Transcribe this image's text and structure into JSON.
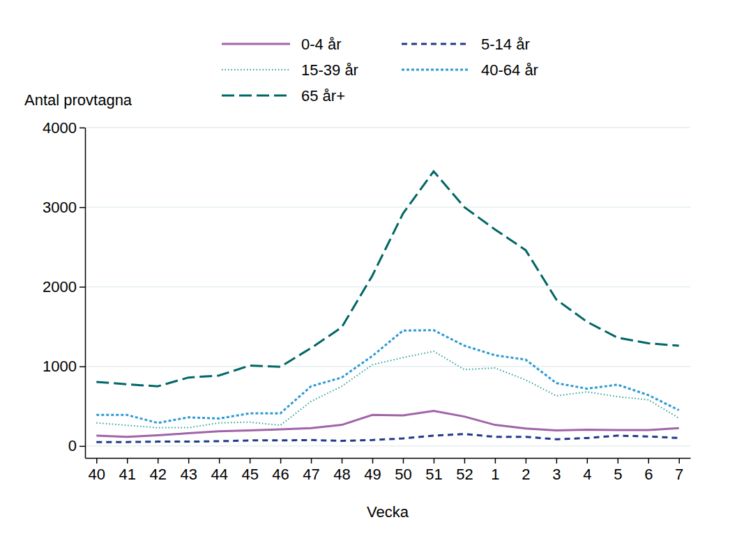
{
  "chart_data": {
    "type": "line",
    "y_label": "Antal provtagna",
    "x_label": "Vecka",
    "categories": [
      "40",
      "41",
      "42",
      "43",
      "44",
      "45",
      "46",
      "47",
      "48",
      "49",
      "50",
      "51",
      "52",
      "1",
      "2",
      "3",
      "4",
      "5",
      "6",
      "7"
    ],
    "series": [
      {
        "name": "0-4 år",
        "color": "#a064a8",
        "line_style": "solid",
        "values": [
          130,
          115,
          135,
          160,
          185,
          195,
          210,
          225,
          265,
          390,
          385,
          440,
          370,
          265,
          220,
          195,
          205,
          200,
          200,
          225
        ]
      },
      {
        "name": "5-14 år",
        "color": "#1f3a8a",
        "line_style": "dash",
        "values": [
          50,
          50,
          55,
          55,
          60,
          70,
          70,
          75,
          65,
          75,
          95,
          130,
          150,
          115,
          115,
          85,
          100,
          130,
          120,
          100
        ]
      },
      {
        "name": "15-39 år",
        "color": "#2aa198",
        "line_style": "dot",
        "values": [
          290,
          260,
          230,
          230,
          290,
          300,
          260,
          560,
          750,
          1020,
          1110,
          1190,
          960,
          980,
          830,
          630,
          680,
          620,
          580,
          350
        ]
      },
      {
        "name": "40-64 år",
        "color": "#2c9ad6",
        "line_style": "short-dash",
        "values": [
          390,
          390,
          290,
          360,
          345,
          410,
          410,
          750,
          860,
          1130,
          1450,
          1455,
          1260,
          1140,
          1085,
          790,
          720,
          770,
          640,
          450
        ]
      },
      {
        "name": "65 år+",
        "color": "#006666",
        "line_style": "long-dash",
        "values": [
          805,
          775,
          750,
          860,
          885,
          1010,
          995,
          1230,
          1490,
          2140,
          2920,
          3450,
          3000,
          2720,
          2460,
          1840,
          1560,
          1360,
          1290,
          1260
        ]
      }
    ],
    "ylim": [
      -150,
      4000
    ],
    "yticks": [
      0,
      1000,
      2000,
      3000,
      4000
    ],
    "grid": true,
    "legend": "top"
  }
}
